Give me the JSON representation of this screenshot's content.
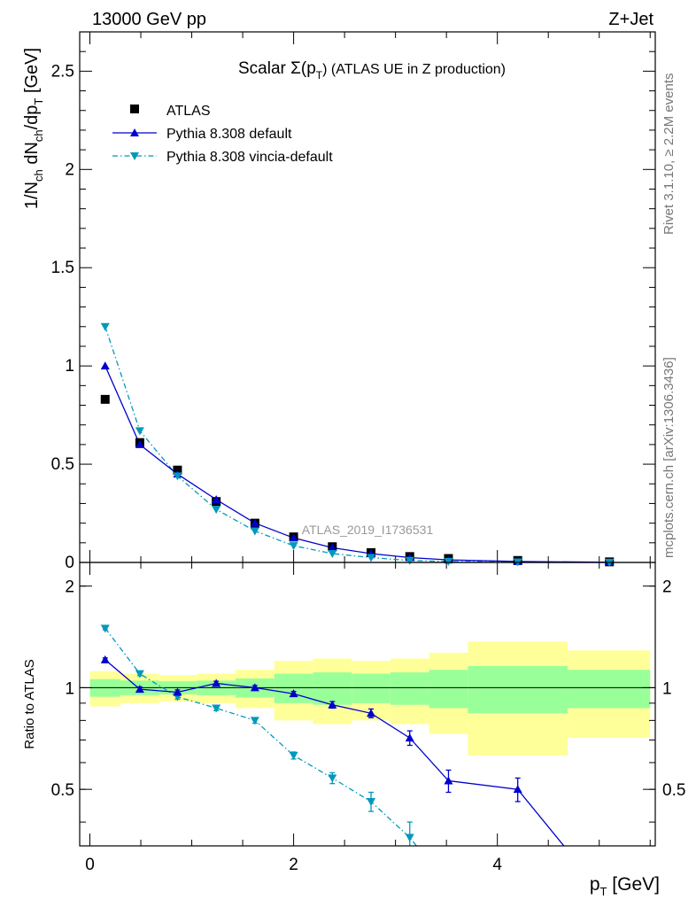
{
  "header": {
    "energy_label": "13000 GeV pp",
    "process_label": "Z+Jet"
  },
  "side_text": {
    "rivet_info": "Rivet 3.1.10, ≥ 2.2M events",
    "mcplots_info": "mcplots.cern.ch [arXiv:1306.3436]"
  },
  "watermark": "ATLAS_2019_I1736531",
  "colors": {
    "atlas": "#000000",
    "pythia_default": "#0000cc",
    "pythia_vincia": "#0099bb",
    "band_inner": "#99ff99",
    "band_outer": "#ffff99"
  },
  "chart_data": [
    {
      "type": "scatter",
      "panel": "main",
      "title_prefix": "Scalar Σ(p",
      "title_sub": "T",
      "title_suffix": ") (ATLAS UE in Z production)",
      "ylabel": "1/N_ch dN_ch/dp_T [GeV]",
      "xlim": [
        -0.1,
        5.55
      ],
      "ylim": [
        0,
        2.7
      ],
      "y_ticks": [
        0,
        0.5,
        1,
        1.5,
        2,
        2.5
      ],
      "y_tick_labels": [
        "0",
        "0.5",
        "1",
        "1.5",
        "2",
        "2.5"
      ],
      "legend_position": "top-left",
      "series": [
        {
          "name": "ATLAS",
          "style": "square",
          "x": [
            0.15,
            0.49,
            0.86,
            1.24,
            1.62,
            2.0,
            2.38,
            2.76,
            3.14,
            3.52,
            4.2,
            5.1
          ],
          "y": [
            0.83,
            0.61,
            0.47,
            0.31,
            0.2,
            0.13,
            0.08,
            0.05,
            0.03,
            0.02,
            0.01,
            0.003
          ]
        },
        {
          "name": "Pythia 8.308 default",
          "style": "triangle-up-solid",
          "x": [
            0.15,
            0.49,
            0.86,
            1.24,
            1.62,
            2.0,
            2.38,
            2.76,
            3.14,
            3.52,
            4.2,
            5.1
          ],
          "y": [
            1.0,
            0.6,
            0.45,
            0.32,
            0.2,
            0.125,
            0.075,
            0.045,
            0.025,
            0.013,
            0.005,
            0.001
          ]
        },
        {
          "name": "Pythia 8.308 vincia-default",
          "style": "triangle-down-dashdot",
          "x": [
            0.15,
            0.49,
            0.86,
            1.24,
            1.62,
            2.0,
            2.38,
            2.76,
            3.14,
            3.52,
            4.2,
            5.1
          ],
          "y": [
            1.2,
            0.67,
            0.44,
            0.27,
            0.16,
            0.085,
            0.045,
            0.025,
            0.01,
            0.005,
            0.002,
            0.0005
          ]
        }
      ]
    },
    {
      "type": "line",
      "panel": "ratio",
      "ylabel": "Ratio to ATLAS",
      "xlabel_prefix": "p",
      "xlabel_sub": "T",
      "xlabel_suffix": " [GeV]",
      "xlim": [
        -0.1,
        5.55
      ],
      "ylim": [
        0.34,
        2.35
      ],
      "x_ticks": [
        0,
        2,
        4
      ],
      "x_tick_labels": [
        "0",
        "2",
        "4"
      ],
      "y_ticks": [
        0.5,
        1,
        2
      ],
      "y_tick_labels": [
        "0.5",
        "1",
        "2"
      ],
      "bands": {
        "edges": [
          0.0,
          0.3,
          0.68,
          1.05,
          1.43,
          1.81,
          2.19,
          2.57,
          2.95,
          3.33,
          3.71,
          4.69,
          5.5
        ],
        "outer_low": [
          0.88,
          0.9,
          0.91,
          0.9,
          0.87,
          0.8,
          0.78,
          0.8,
          0.78,
          0.73,
          0.63,
          0.71
        ],
        "outer_high": [
          1.12,
          1.1,
          1.09,
          1.1,
          1.13,
          1.2,
          1.22,
          1.2,
          1.22,
          1.27,
          1.37,
          1.29
        ],
        "inner_low": [
          0.94,
          0.95,
          0.955,
          0.95,
          0.935,
          0.9,
          0.89,
          0.9,
          0.89,
          0.87,
          0.84,
          0.87
        ],
        "inner_high": [
          1.06,
          1.05,
          1.045,
          1.05,
          1.065,
          1.1,
          1.11,
          1.1,
          1.11,
          1.13,
          1.16,
          1.13
        ]
      },
      "series": [
        {
          "name": "Pythia 8.308 default",
          "x": [
            0.15,
            0.49,
            0.86,
            1.24,
            1.62,
            2.0,
            2.38,
            2.76,
            3.14,
            3.52,
            4.2,
            4.8
          ],
          "y": [
            1.21,
            0.99,
            0.97,
            1.03,
            1.0,
            0.96,
            0.89,
            0.84,
            0.71,
            0.53,
            0.5,
            0.3
          ],
          "err": [
            0.015,
            0.015,
            0.015,
            0.015,
            0.015,
            0.015,
            0.02,
            0.025,
            0.035,
            0.04,
            0.04,
            0.0
          ]
        },
        {
          "name": "Pythia 8.308 vincia-default",
          "x": [
            0.15,
            0.49,
            0.86,
            1.24,
            1.62,
            2.0,
            2.38,
            2.76,
            3.14,
            3.35
          ],
          "y": [
            1.5,
            1.1,
            0.94,
            0.87,
            0.8,
            0.63,
            0.54,
            0.46,
            0.36,
            0.3
          ],
          "err": [
            0.015,
            0.015,
            0.015,
            0.015,
            0.015,
            0.015,
            0.02,
            0.03,
            0.04,
            0.0
          ]
        }
      ]
    }
  ]
}
